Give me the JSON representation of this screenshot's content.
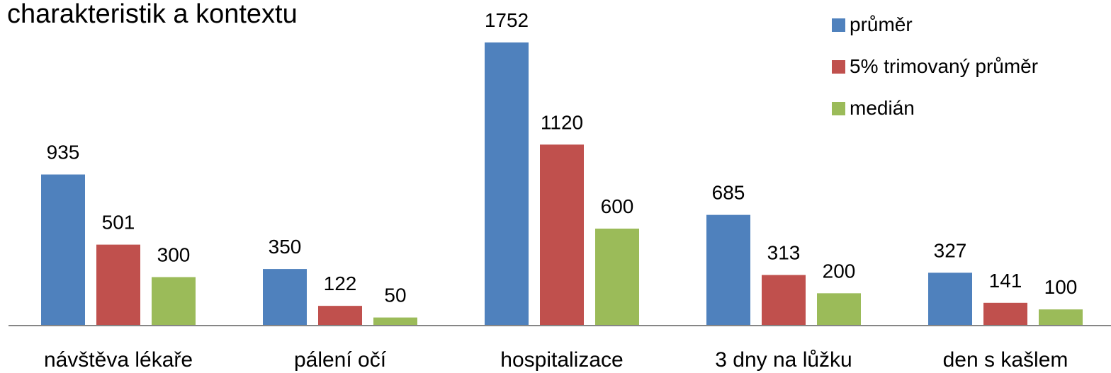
{
  "chart_data": {
    "type": "bar",
    "title": "charakteristik a kontextu",
    "categories": [
      "návštěva lékaře",
      "pálení očí",
      "hospitalizace",
      "3 dny na lůžku",
      "den s kašlem"
    ],
    "series": [
      {
        "name": "průměr",
        "color": "#4F81BD",
        "values": [
          935,
          350,
          1752,
          685,
          327
        ]
      },
      {
        "name": "5% trimovaný průměr",
        "color": "#C0504D",
        "values": [
          501,
          122,
          1120,
          313,
          141
        ]
      },
      {
        "name": "medián",
        "color": "#9BBB59",
        "values": [
          300,
          50,
          600,
          200,
          100
        ]
      }
    ],
    "ylim": [
      0,
      1752
    ],
    "grid": false,
    "legend_position": "top-right"
  }
}
